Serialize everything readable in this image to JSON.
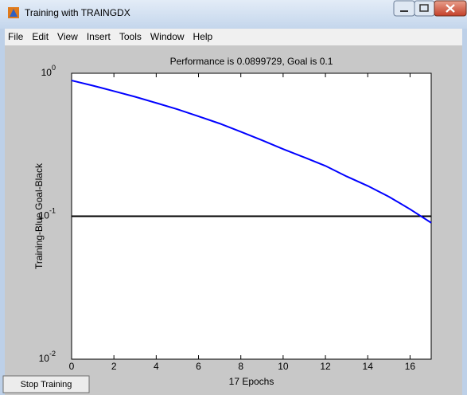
{
  "window": {
    "title": "Training with TRAINGDX"
  },
  "menu": [
    "File",
    "Edit",
    "View",
    "Insert",
    "Tools",
    "Window",
    "Help"
  ],
  "button": "Stop Training",
  "chart_data": {
    "type": "line",
    "title": "Performance is 0.0899729, Goal is 0.1",
    "xlabel": "17 Epochs",
    "ylabel": "Training-Blue  Goal-Black",
    "x": [
      0,
      1,
      2,
      3,
      4,
      5,
      6,
      7,
      8,
      9,
      10,
      11,
      12,
      13,
      14,
      15,
      16,
      17
    ],
    "series": [
      {
        "color": "#0000ff",
        "values": [
          0.89,
          0.82,
          0.75,
          0.685,
          0.62,
          0.56,
          0.5,
          0.445,
          0.39,
          0.34,
          0.295,
          0.258,
          0.225,
          0.19,
          0.163,
          0.137,
          0.112,
          0.0899729
        ]
      }
    ],
    "goal": 0.1,
    "goal_color": "#000000",
    "xlim": [
      0,
      17
    ],
    "xticks": [
      0,
      2,
      4,
      6,
      8,
      10,
      12,
      14,
      16
    ],
    "ylim": [
      0.01,
      1
    ],
    "log_y": true,
    "yticks": [
      {
        "value": 0.01,
        "label": "10",
        "exponent": "-2"
      },
      {
        "value": 0.1,
        "label": "10",
        "exponent": "-1"
      },
      {
        "value": 1,
        "label": "10",
        "exponent": "0"
      }
    ]
  }
}
